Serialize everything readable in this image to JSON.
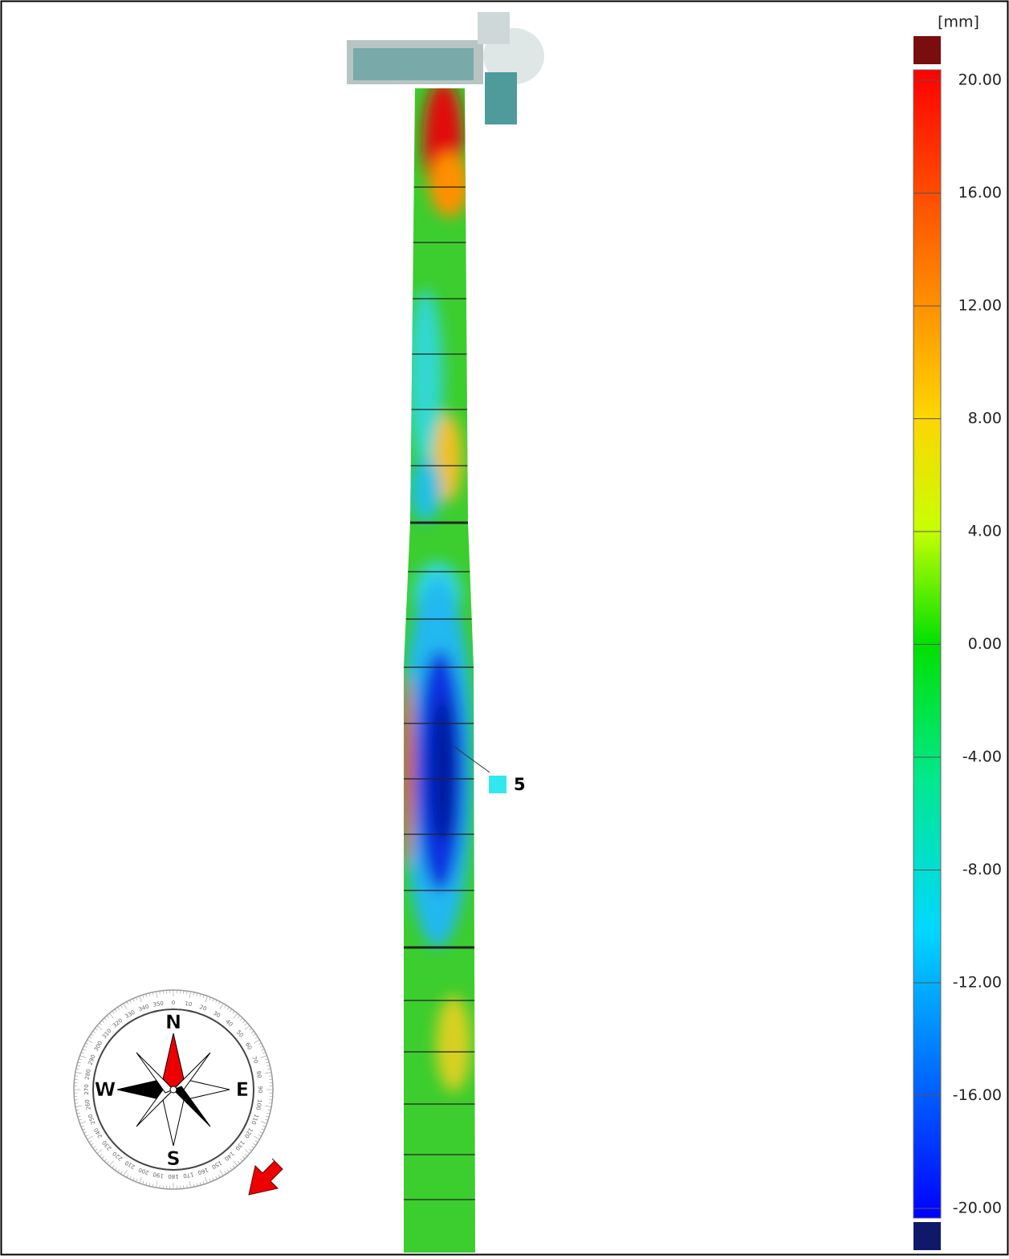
{
  "colorbar": {
    "unit": "[mm]",
    "ticks": [
      {
        "value": 20,
        "label": "20.00"
      },
      {
        "value": 16,
        "label": "16.00"
      },
      {
        "value": 12,
        "label": "12.00"
      },
      {
        "value": 8,
        "label": "8.00"
      },
      {
        "value": 4,
        "label": "4.00"
      },
      {
        "value": 0,
        "label": "0.00"
      },
      {
        "value": -4,
        "label": "-4.00"
      },
      {
        "value": -8,
        "label": "-8.00"
      },
      {
        "value": -12,
        "label": "-12.00"
      },
      {
        "value": -16,
        "label": "-16.00"
      },
      {
        "value": -20,
        "label": "-20.00"
      }
    ]
  },
  "marker": {
    "label": "5"
  },
  "compass": {
    "north": "N",
    "east": "E",
    "south": "S",
    "west": "W",
    "degrees": [
      0,
      10,
      20,
      30,
      40,
      50,
      60,
      70,
      80,
      90,
      100,
      110,
      120,
      130,
      140,
      150,
      160,
      170,
      180,
      190,
      200,
      210,
      220,
      230,
      240,
      250,
      260,
      270,
      280,
      290,
      300,
      310,
      320,
      330,
      340,
      350
    ]
  }
}
